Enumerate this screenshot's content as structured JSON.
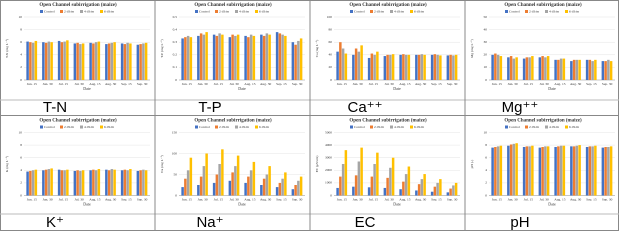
{
  "chart_data": [
    {
      "type": "bar",
      "title": "Open Channel subirrigation (maize)",
      "caption": "T-N",
      "y_label": "T-N (mg L⁻¹)",
      "x_label": "Date",
      "categories": [
        "Jun. 15",
        "Jun. 30",
        "Jul. 15",
        "Jul. 30",
        "Aug. 15",
        "Aug. 30",
        "Sep. 15",
        "Sep. 30"
      ],
      "ylim": [
        0,
        10
      ],
      "yticks": [
        0,
        2,
        4,
        6,
        8,
        10
      ],
      "series": [
        {
          "name": "Control",
          "color": "#4472c4",
          "values": [
            6.1,
            6.0,
            6.2,
            5.8,
            5.9,
            5.7,
            5.8,
            5.6
          ]
        },
        {
          "name": "2 dS/m",
          "color": "#ed7d31",
          "values": [
            6.0,
            5.9,
            6.0,
            5.9,
            5.8,
            5.8,
            5.7,
            5.7
          ]
        },
        {
          "name": "4 dS/m",
          "color": "#a5a5a5",
          "values": [
            5.9,
            6.1,
            6.1,
            5.7,
            6.0,
            5.9,
            5.9,
            5.8
          ]
        },
        {
          "name": "6 dS/m",
          "color": "#ffc000",
          "values": [
            6.2,
            6.0,
            6.3,
            5.8,
            6.1,
            6.0,
            5.8,
            5.9
          ]
        }
      ]
    },
    {
      "type": "bar",
      "title": "Open Channel subirrigation (maize)",
      "caption": "T-P",
      "y_label": "T-P (mg L⁻¹)",
      "x_label": "Date",
      "categories": [
        "Jun. 15",
        "Jun. 30",
        "Jul. 15",
        "Jul. 30",
        "Aug. 15",
        "Aug. 30",
        "Sep. 15",
        "Sep. 30"
      ],
      "ylim": [
        0,
        0.5
      ],
      "yticks": [
        0,
        0.1,
        0.2,
        0.3,
        0.4,
        0.5
      ],
      "series": [
        {
          "name": "Control",
          "color": "#4472c4",
          "values": [
            0.33,
            0.35,
            0.36,
            0.34,
            0.35,
            0.36,
            0.38,
            0.3
          ]
        },
        {
          "name": "2 dS/m",
          "color": "#ed7d31",
          "values": [
            0.34,
            0.37,
            0.35,
            0.36,
            0.34,
            0.35,
            0.37,
            0.28
          ]
        },
        {
          "name": "4 dS/m",
          "color": "#a5a5a5",
          "values": [
            0.35,
            0.36,
            0.37,
            0.35,
            0.36,
            0.37,
            0.36,
            0.31
          ]
        },
        {
          "name": "6 dS/m",
          "color": "#ffc000",
          "values": [
            0.34,
            0.38,
            0.36,
            0.36,
            0.35,
            0.36,
            0.35,
            0.33
          ]
        }
      ]
    },
    {
      "type": "bar",
      "title": "Open Channel subirrigation (maize)",
      "caption": "Ca⁺⁺",
      "y_label": "Ca (mg L⁻¹)",
      "x_label": "Date",
      "categories": [
        "Jun. 15",
        "Jun. 30",
        "Jul. 15",
        "Jul. 30",
        "Aug. 15",
        "Aug. 30",
        "Sep. 15",
        "Sep. 30"
      ],
      "ylim": [
        0,
        100
      ],
      "yticks": [
        0,
        20,
        40,
        60,
        80,
        100
      ],
      "series": [
        {
          "name": "Control",
          "color": "#4472c4",
          "values": [
            45,
            40,
            35,
            38,
            40,
            40,
            40,
            39
          ]
        },
        {
          "name": "2 dS/m",
          "color": "#ed7d31",
          "values": [
            60,
            50,
            42,
            40,
            41,
            40,
            41,
            40
          ]
        },
        {
          "name": "4 dS/m",
          "color": "#a5a5a5",
          "values": [
            50,
            45,
            40,
            40,
            40,
            41,
            40,
            39
          ]
        },
        {
          "name": "6 dS/m",
          "color": "#ffc000",
          "values": [
            42,
            55,
            45,
            41,
            40,
            40,
            39,
            40
          ]
        }
      ]
    },
    {
      "type": "bar",
      "title": "Open Channel subirrigation (maize)",
      "caption": "Mg⁺⁺",
      "y_label": "Mg (mg L⁻¹)",
      "x_label": "Date",
      "categories": [
        "Jun. 15",
        "Jun. 30",
        "Jul. 15",
        "Jul. 30",
        "Aug. 15",
        "Aug. 30",
        "Sep. 15",
        "Sep. 30"
      ],
      "ylim": [
        0,
        50
      ],
      "yticks": [
        0,
        10,
        20,
        30,
        40,
        50
      ],
      "series": [
        {
          "name": "Control",
          "color": "#4472c4",
          "values": [
            20,
            18,
            17,
            18,
            16,
            15,
            16,
            15
          ]
        },
        {
          "name": "2 dS/m",
          "color": "#ed7d31",
          "values": [
            21,
            19,
            18,
            19,
            16,
            16,
            16,
            15
          ]
        },
        {
          "name": "4 dS/m",
          "color": "#a5a5a5",
          "values": [
            20,
            17,
            18,
            18,
            17,
            16,
            15,
            16
          ]
        },
        {
          "name": "6 dS/m",
          "color": "#ffc000",
          "values": [
            19,
            18,
            19,
            19,
            17,
            16,
            16,
            15
          ]
        }
      ]
    },
    {
      "type": "bar",
      "title": "Open Channel subirrigation (maize)",
      "caption": "K⁺",
      "y_label": "K (mg L⁻¹)",
      "x_label": "Date",
      "categories": [
        "Jun. 15",
        "Jun. 30",
        "Jul. 15",
        "Jul. 30",
        "Aug. 15",
        "Aug. 30",
        "Sep. 15",
        "Sep. 30"
      ],
      "ylim": [
        0,
        10
      ],
      "yticks": [
        0,
        2,
        4,
        6,
        8,
        10
      ],
      "series": [
        {
          "name": "Control",
          "color": "#4472c4",
          "values": [
            3.8,
            4.0,
            4.1,
            3.9,
            4.0,
            4.1,
            4.0,
            3.9
          ]
        },
        {
          "name": "2 dS/m",
          "color": "#ed7d31",
          "values": [
            3.9,
            4.1,
            4.0,
            4.0,
            4.1,
            4.0,
            4.1,
            4.0
          ]
        },
        {
          "name": "4 dS/m",
          "color": "#a5a5a5",
          "values": [
            4.0,
            4.2,
            4.0,
            3.9,
            4.0,
            4.2,
            4.0,
            4.1
          ]
        },
        {
          "name": "6 dS/m",
          "color": "#ffc000",
          "values": [
            4.1,
            4.3,
            4.1,
            4.0,
            4.2,
            4.1,
            4.2,
            4.0
          ]
        }
      ]
    },
    {
      "type": "bar",
      "title": "Open Channel subirrigation (maize)",
      "caption": "Na⁺",
      "y_label": "Na (mg L⁻¹)",
      "x_label": "Date",
      "categories": [
        "Jun. 15",
        "Jun. 30",
        "Jul. 15",
        "Jul. 30",
        "Aug. 15",
        "Aug. 30",
        "Sep. 15",
        "Sep. 30"
      ],
      "ylim": [
        0,
        150
      ],
      "yticks": [
        0,
        50,
        100,
        150
      ],
      "series": [
        {
          "name": "Control",
          "color": "#4472c4",
          "values": [
            20,
            25,
            30,
            35,
            30,
            25,
            20,
            15
          ]
        },
        {
          "name": "2 dS/m",
          "color": "#ed7d31",
          "values": [
            40,
            45,
            50,
            55,
            45,
            40,
            30,
            25
          ]
        },
        {
          "name": "4 dS/m",
          "color": "#a5a5a5",
          "values": [
            60,
            70,
            75,
            70,
            60,
            50,
            40,
            35
          ]
        },
        {
          "name": "6 dS/m",
          "color": "#ffc000",
          "values": [
            90,
            100,
            110,
            95,
            80,
            70,
            55,
            45
          ]
        }
      ]
    },
    {
      "type": "bar",
      "title": "Open Channel subirrigation (maize)",
      "caption": "EC",
      "y_label": "EC (μS/cm)",
      "x_label": "Date",
      "categories": [
        "Jun. 15",
        "Jun. 30",
        "Jul. 15",
        "Jul. 30",
        "Aug. 15",
        "Aug. 30",
        "Sep. 15",
        "Sep. 30"
      ],
      "ylim": [
        0,
        5000
      ],
      "yticks": [
        0,
        1000,
        2000,
        3000,
        4000,
        5000
      ],
      "series": [
        {
          "name": "Control",
          "color": "#4472c4",
          "values": [
            600,
            700,
            650,
            600,
            500,
            400,
            300,
            250
          ]
        },
        {
          "name": "2 dS/m",
          "color": "#ed7d31",
          "values": [
            1500,
            1600,
            1500,
            1400,
            1100,
            900,
            700,
            550
          ]
        },
        {
          "name": "4 dS/m",
          "color": "#a5a5a5",
          "values": [
            2500,
            2700,
            2500,
            2200,
            1700,
            1300,
            1000,
            800
          ]
        },
        {
          "name": "6 dS/m",
          "color": "#ffc000",
          "values": [
            3600,
            3800,
            3400,
            3000,
            2300,
            1700,
            1300,
            1000
          ]
        }
      ]
    },
    {
      "type": "bar",
      "title": "Open Channel subirrigation (maize)",
      "caption": "pH",
      "y_label": "pH (-)",
      "x_label": "Date",
      "categories": [
        "Jun. 15",
        "Jun. 30",
        "Jul. 15",
        "Jul. 30",
        "Aug. 15",
        "Aug. 30",
        "Sep. 15",
        "Sep. 30"
      ],
      "ylim": [
        0,
        10
      ],
      "yticks": [
        0,
        2,
        4,
        6,
        8,
        10
      ],
      "series": [
        {
          "name": "Control",
          "color": "#4472c4",
          "values": [
            7.6,
            7.9,
            7.7,
            7.6,
            7.7,
            7.8,
            7.7,
            7.6
          ]
        },
        {
          "name": "2 dS/m",
          "color": "#ed7d31",
          "values": [
            7.7,
            8.1,
            7.8,
            7.7,
            7.8,
            7.8,
            7.8,
            7.7
          ]
        },
        {
          "name": "4 dS/m",
          "color": "#a5a5a5",
          "values": [
            7.8,
            8.2,
            7.8,
            7.8,
            7.9,
            7.9,
            7.8,
            7.7
          ]
        },
        {
          "name": "6 dS/m",
          "color": "#ffc000",
          "values": [
            7.9,
            8.3,
            7.9,
            7.8,
            7.9,
            8.0,
            7.9,
            7.8
          ]
        }
      ]
    }
  ]
}
